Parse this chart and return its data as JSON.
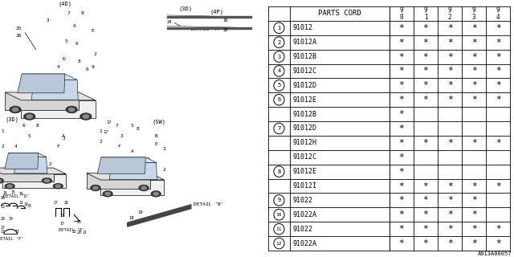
{
  "bg_color": "#ffffff",
  "table": {
    "header_col1": "PARTS CORD",
    "header_years": [
      "9\n0",
      "9\n1",
      "9\n2",
      "9\n3",
      "9\n4"
    ],
    "rows": [
      {
        "num": "1",
        "part": "91012",
        "marks": [
          1,
          1,
          1,
          1,
          1
        ]
      },
      {
        "num": "2",
        "part": "91012A",
        "marks": [
          1,
          1,
          1,
          1,
          1
        ]
      },
      {
        "num": "3",
        "part": "91012B",
        "marks": [
          1,
          1,
          1,
          1,
          1
        ]
      },
      {
        "num": "4",
        "part": "91012C",
        "marks": [
          1,
          1,
          1,
          1,
          1
        ]
      },
      {
        "num": "5",
        "part": "91012D",
        "marks": [
          1,
          1,
          1,
          1,
          1
        ]
      },
      {
        "num": "6",
        "part": "91012E",
        "marks": [
          1,
          1,
          1,
          1,
          1
        ]
      },
      {
        "num": "",
        "part": "91012B",
        "marks": [
          1,
          0,
          0,
          0,
          0
        ]
      },
      {
        "num": "7",
        "part": "91012D",
        "marks": [
          1,
          0,
          0,
          0,
          0
        ]
      },
      {
        "num": "",
        "part": "91012H",
        "marks": [
          1,
          1,
          1,
          1,
          1
        ]
      },
      {
        "num": "",
        "part": "91012C",
        "marks": [
          1,
          0,
          0,
          0,
          0
        ]
      },
      {
        "num": "8",
        "part": "91012E",
        "marks": [
          1,
          0,
          0,
          0,
          0
        ]
      },
      {
        "num": "",
        "part": "91012I",
        "marks": [
          1,
          1,
          1,
          1,
          1
        ]
      },
      {
        "num": "9",
        "part": "91022",
        "marks": [
          1,
          1,
          1,
          1,
          0
        ]
      },
      {
        "num": "10",
        "part": "91022A",
        "marks": [
          1,
          1,
          1,
          1,
          0
        ]
      },
      {
        "num": "11",
        "part": "91022",
        "marks": [
          1,
          1,
          1,
          1,
          1
        ]
      },
      {
        "num": "12",
        "part": "91022A",
        "marks": [
          1,
          1,
          1,
          1,
          1
        ]
      }
    ]
  },
  "footer": "A913A00057"
}
